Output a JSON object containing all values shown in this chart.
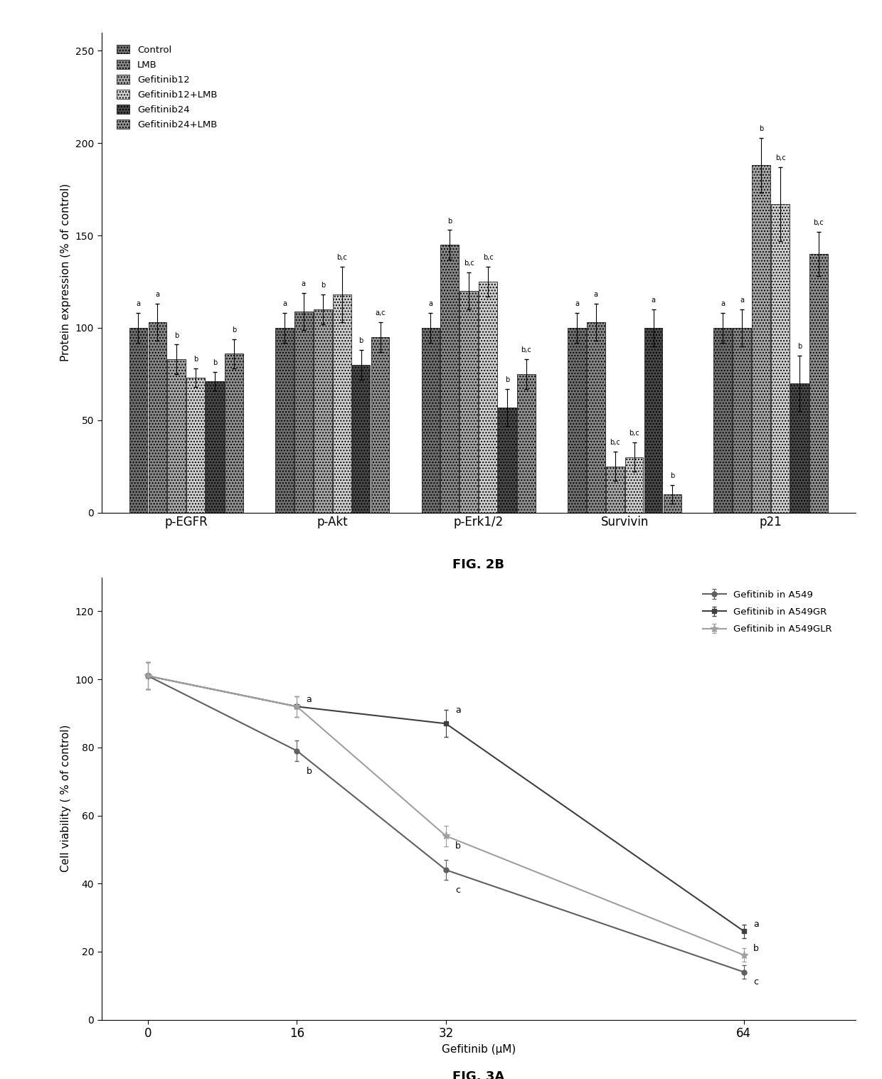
{
  "fig2b": {
    "proteins": [
      "p-EGFR",
      "p-Akt",
      "p-Erk1/2",
      "Survivin",
      "p21"
    ],
    "groups": [
      "Control",
      "LMB",
      "Gefitinib12",
      "Gefitinib12+LMB",
      "Gefitinib24",
      "Gefitinib24+LMB"
    ],
    "values": {
      "p-EGFR": [
        100,
        103,
        83,
        73,
        71,
        86
      ],
      "p-Akt": [
        100,
        109,
        110,
        118,
        80,
        95
      ],
      "p-Erk1/2": [
        100,
        145,
        120,
        125,
        57,
        75
      ],
      "Survivin": [
        100,
        103,
        25,
        30,
        100,
        10
      ],
      "p21": [
        100,
        100,
        188,
        167,
        70,
        140
      ]
    },
    "errors": {
      "p-EGFR": [
        8,
        10,
        8,
        5,
        5,
        8
      ],
      "p-Akt": [
        8,
        10,
        8,
        15,
        8,
        8
      ],
      "p-Erk1/2": [
        8,
        8,
        10,
        8,
        10,
        8
      ],
      "Survivin": [
        8,
        10,
        8,
        8,
        10,
        5
      ],
      "p21": [
        8,
        10,
        15,
        20,
        15,
        12
      ]
    },
    "labels": {
      "p-EGFR": [
        "a",
        "a",
        "b",
        "b",
        "b",
        "b"
      ],
      "p-Akt": [
        "a",
        "a",
        "b",
        "b,c",
        "b",
        "a,c"
      ],
      "p-Erk1/2": [
        "a",
        "b",
        "b,c",
        "b,c",
        "b",
        "b,c"
      ],
      "Survivin": [
        "a",
        "a",
        "b,c",
        "b,c",
        "a",
        "b"
      ],
      "p21": [
        "a",
        "a",
        "b",
        "b,c",
        "b",
        "b,c"
      ]
    },
    "bar_colors": [
      "#707070",
      "#888888",
      "#a8a8a8",
      "#d0d0d0",
      "#484848",
      "#909090"
    ],
    "hatches": [
      "....",
      "....",
      "....",
      "....",
      "....",
      "...."
    ],
    "ylabel": "Protein expression (% of control)",
    "ylim": [
      0,
      260
    ],
    "yticks": [
      0,
      50,
      100,
      150,
      200,
      250
    ],
    "figname": "FIG. 2B"
  },
  "fig3a": {
    "x": [
      0,
      16,
      32,
      64
    ],
    "lines": {
      "Gefitinib in A549": [
        101,
        79,
        44,
        14
      ],
      "Gefitinib in A549GR": [
        101,
        92,
        87,
        26
      ],
      "Gefitinib in A549GLR": [
        101,
        92,
        54,
        19
      ]
    },
    "errors": {
      "Gefitinib in A549": [
        4,
        3,
        3,
        2
      ],
      "Gefitinib in A549GR": [
        4,
        3,
        4,
        2
      ],
      "Gefitinib in A549GLR": [
        4,
        3,
        3,
        2
      ]
    },
    "line_colors": [
      "#606060",
      "#404040",
      "#a0a0a0"
    ],
    "markers": [
      "o",
      "s",
      "*"
    ],
    "marker_sizes": [
      5,
      5,
      8
    ],
    "ylabel": "Cell viability ( % of control)",
    "xlabel": "Gefitinib (μM)",
    "ylim": [
      0,
      130
    ],
    "yticks": [
      0,
      20,
      40,
      60,
      80,
      100,
      120
    ],
    "xticks": [
      0,
      16,
      32,
      64
    ],
    "figname": "FIG. 3A",
    "annot_16": [
      [
        "a",
        92,
        "left"
      ],
      [
        "b",
        78,
        "left"
      ]
    ],
    "annot_32": [
      [
        "a",
        89,
        "left"
      ],
      [
        "b",
        53,
        "left"
      ],
      [
        "c",
        39,
        "left"
      ]
    ],
    "annot_64": [
      [
        "a",
        27,
        "left"
      ],
      [
        "b",
        21,
        "left"
      ],
      [
        "c",
        12,
        "left"
      ]
    ]
  }
}
